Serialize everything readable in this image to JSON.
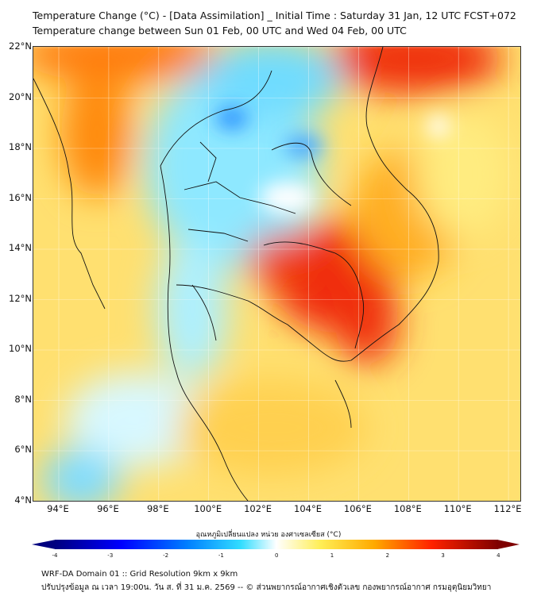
{
  "title": {
    "line1": "Temperature Change (°C) - [Data Assimilation] _ Initial Time : Saturday 31 Jan, 12 UTC FCST+072",
    "line2": "Temperature change between Sun 01 Feb, 00 UTC and Wed 04 Feb, 00 UTC"
  },
  "map": {
    "lat_labels": [
      "22°N",
      "20°N",
      "18°N",
      "16°N",
      "14°N",
      "12°N",
      "10°N",
      "8°N",
      "6°N",
      "4°N"
    ],
    "lon_labels": [
      "94°E",
      "96°E",
      "98°E",
      "100°E",
      "102°E",
      "104°E",
      "106°E",
      "108°E",
      "110°E",
      "112°E"
    ],
    "lat_range": [
      4,
      22
    ],
    "lon_range": [
      93,
      112.6
    ]
  },
  "colorbar": {
    "title": "อุณหภูมิเปลี่ยนแปลง หน่วย องศาเซลเซียส (°C)",
    "ticks": [
      "-4",
      "-3",
      "-2",
      "-1",
      "0",
      "1",
      "2",
      "3",
      "4"
    ],
    "range": [
      -4,
      4
    ],
    "colors": [
      "#00007f",
      "#0000ff",
      "#0080ff",
      "#33ddff",
      "#ffffff",
      "#ffee55",
      "#ffaa00",
      "#ff2200",
      "#7f0000"
    ]
  },
  "footer": {
    "line1": "WRF-DA Domain 01 :: Grid Resolution 9km x 9km",
    "line2": "ปรับปรุงข้อมูล ณ เวลา 19:00น. วัน ส. ที่ 31 ม.ค. 2569 -- © ส่วนพยากรณ์อากาศเชิงตัวเลข กองพยากรณ์อากาศ กรมอุตุนิยมวิทยา"
  }
}
